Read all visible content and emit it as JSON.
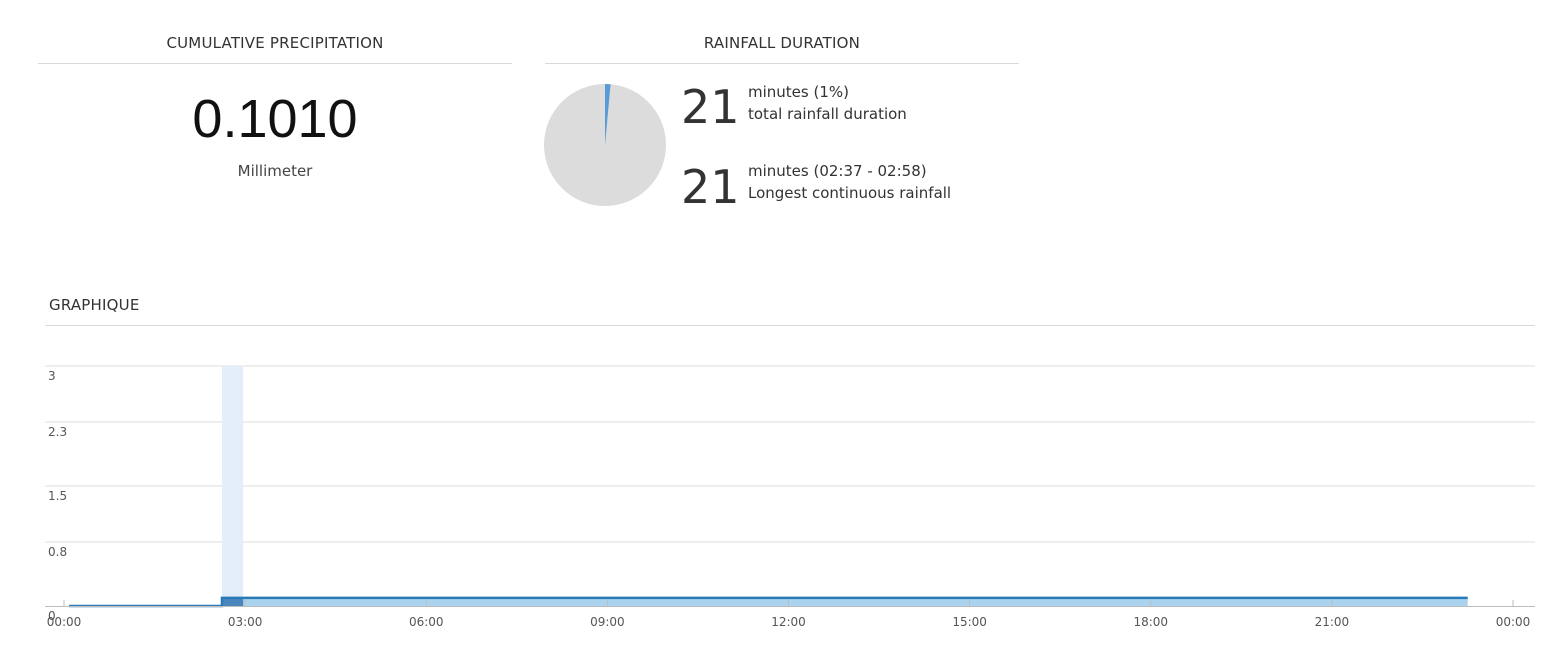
{
  "precipitation": {
    "title": "CUMULATIVE PRECIPITATION",
    "value": "0.1010",
    "unit": "Millimeter"
  },
  "duration": {
    "title": "RAINFALL DURATION",
    "pie": {
      "rain_fraction": 0.0146,
      "rain_color": "#5b9bd5",
      "rest_color": "#dcdcdc"
    },
    "total": {
      "number": "21",
      "line1": "minutes (1%)",
      "line2": "total rainfall duration"
    },
    "longest": {
      "number": "21",
      "line1": "minutes (02:37 - 02:58)",
      "line2": "Longest continuous rainfall"
    }
  },
  "graph": {
    "title": "GRAPHIQUE"
  },
  "colors": {
    "line": "#2a7ab8",
    "area": "#a9d3ee",
    "highlight_band": "#e3eefa",
    "highlight_step": "#4a86bd",
    "grid": "#dddddd"
  },
  "chart_data": {
    "type": "area",
    "x_ticks": [
      "00:00",
      "03:00",
      "06:00",
      "09:00",
      "12:00",
      "15:00",
      "18:00",
      "21:00",
      "00:00"
    ],
    "y_ticks": [
      "0",
      "0.8",
      "1.5",
      "2.3",
      "3"
    ],
    "ylim": [
      0,
      3
    ],
    "grid": true,
    "highlight_interval": [
      "02:37",
      "02:58"
    ],
    "series": [
      {
        "points": [
          [
            "00:05",
            0
          ],
          [
            "02:37",
            0
          ],
          [
            "02:37",
            0.101
          ],
          [
            "23:15",
            0.101
          ]
        ]
      }
    ]
  }
}
